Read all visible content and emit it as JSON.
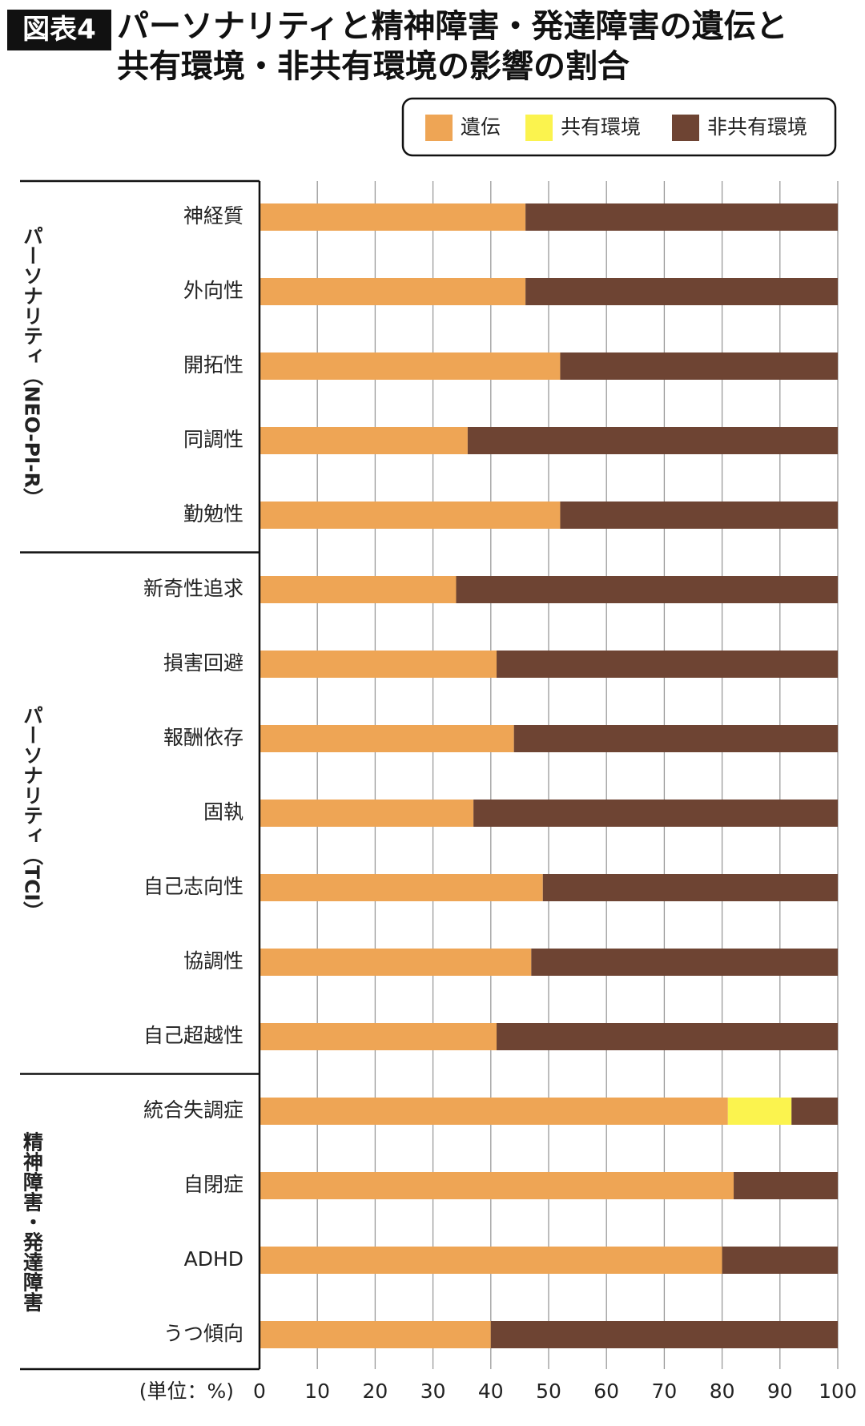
{
  "chart_data": {
    "type": "stacked-bar",
    "orientation": "horizontal",
    "badge": "図表4",
    "title": "パーソナリティと精神障害・発達障害の遺伝と共有環境・非共有環境の影響の割合",
    "unit_label": "(単位：%)",
    "groups": [
      {
        "label": "パーソナリティ（NEO-PI-R）",
        "categories": [
          "神経質",
          "外向性",
          "開拓性",
          "同調性",
          "勤勉性"
        ]
      },
      {
        "label": "パーソナリティ（TCI）",
        "categories": [
          "新奇性追求",
          "損害回避",
          "報酬依存",
          "固執",
          "自己志向性",
          "協調性",
          "自己超越性"
        ]
      },
      {
        "label": "精神障害・発達障害",
        "categories": [
          "統合失調症",
          "自閉症",
          "ADHD",
          "うつ傾向"
        ]
      }
    ],
    "series": [
      {
        "name": "遺伝",
        "color": "#eea555",
        "values": [
          46,
          46,
          52,
          36,
          52,
          34,
          41,
          44,
          37,
          49,
          47,
          41,
          81,
          82,
          80,
          40
        ]
      },
      {
        "name": "共有環境",
        "color": "#fbf34e",
        "values": [
          0,
          0,
          0,
          0,
          0,
          0,
          0,
          0,
          0,
          0,
          0,
          0,
          11,
          0,
          0,
          0
        ]
      },
      {
        "name": "非共有環境",
        "color": "#6e4433",
        "values": [
          54,
          54,
          48,
          64,
          48,
          66,
          59,
          56,
          63,
          51,
          53,
          59,
          8,
          18,
          20,
          60
        ]
      }
    ],
    "xlim": [
      0,
      100
    ],
    "xticks": [
      0,
      10,
      20,
      30,
      40,
      50,
      60,
      70,
      80,
      90,
      100
    ],
    "grid": true
  }
}
